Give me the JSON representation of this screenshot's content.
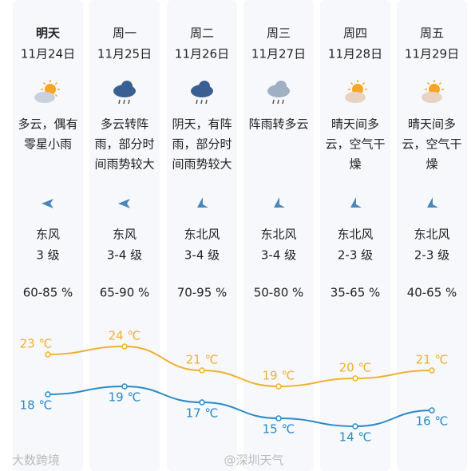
{
  "days": [
    {
      "name": "明天",
      "date": "11月24日",
      "desc": [
        "多云，偶有",
        "零星小雨"
      ],
      "wind": "东风",
      "level": "3 级",
      "humidity": "60-85 %"
    },
    {
      "name": "周一",
      "date": "11月25日",
      "desc": [
        "多云转阵",
        "雨，部分时",
        "间雨势较大"
      ],
      "wind": "东风",
      "level": "3-4 级",
      "humidity": "65-90 %"
    },
    {
      "name": "周二",
      "date": "11月26日",
      "desc": [
        "阴天，有阵",
        "雨，部分时",
        "间雨势较大"
      ],
      "wind": "东北风",
      "level": "3-4 级",
      "humidity": "70-95 %"
    },
    {
      "name": "周三",
      "date": "11月27日",
      "desc": [
        "阵雨转多云"
      ],
      "wind": "东北风",
      "level": "3-4 级",
      "humidity": "50-80 %"
    },
    {
      "name": "周四",
      "date": "11月28日",
      "desc": [
        "晴天间多",
        "云，空气干",
        "燥"
      ],
      "wind": "东北风",
      "level": "2-3 级",
      "humidity": "35-65 %"
    },
    {
      "name": "周五",
      "date": "11月29日",
      "desc": [
        "晴天间多",
        "云，空气干",
        "燥"
      ],
      "wind": "东北风",
      "level": "2-3 级",
      "humidity": "40-65 %"
    }
  ],
  "chart_data": {
    "type": "line",
    "series": [
      {
        "color": "#f0b030",
        "values": [
          23,
          24,
          21,
          19,
          20,
          21
        ],
        "value_labels": [
          "23 ℃",
          "24 ℃",
          "21 ℃",
          "19 ℃",
          "20 ℃",
          "21 ℃"
        ]
      },
      {
        "color": "#2a8ac8",
        "values": [
          18,
          19,
          17,
          15,
          14,
          16
        ],
        "value_labels": [
          "18 ℃",
          "19 ℃",
          "17 ℃",
          "15 ℃",
          "14 ℃",
          "16 ℃"
        ]
      }
    ]
  },
  "watermark": {
    "left": "大数跨境",
    "center": "@深圳天气"
  }
}
